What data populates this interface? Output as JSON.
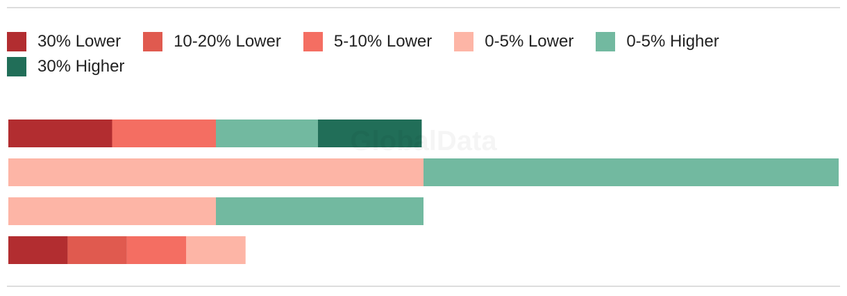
{
  "chart_data": {
    "type": "stacked-bar-horizontal",
    "watermark": "GlobalData",
    "categories": [
      null,
      null,
      null,
      null
    ],
    "series": [
      {
        "name": "30% Lower",
        "color": "#b22d30",
        "values": [
          1.75,
          null,
          null,
          1
        ]
      },
      {
        "name": "10-20% Lower",
        "color": "#e05a4f",
        "values": [
          null,
          null,
          null,
          1
        ]
      },
      {
        "name": "5-10% Lower",
        "color": "#f46e62",
        "values": [
          1.75,
          null,
          null,
          1
        ]
      },
      {
        "name": "0-5% Lower",
        "color": "#fdb5a6",
        "values": [
          null,
          7,
          3.5,
          1
        ]
      },
      {
        "name": "0-5% Higher",
        "color": "#72b9a0",
        "values": [
          1.72,
          7,
          3.5,
          null
        ]
      },
      {
        "name": "30% Higher",
        "color": "#216e58",
        "values": [
          1.75,
          null,
          null,
          null
        ]
      }
    ],
    "xlim": [
      0,
      14
    ]
  }
}
